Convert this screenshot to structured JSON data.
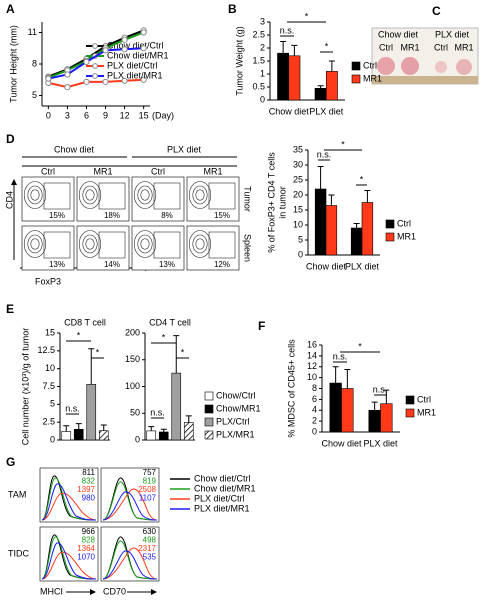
{
  "panel_labels": [
    "A",
    "B",
    "C",
    "D",
    "E",
    "F",
    "G"
  ],
  "chart_data": [
    {
      "type": "line",
      "y_label": "Tumor Height (mm)",
      "x_label": "(Day)",
      "x": [
        0,
        3,
        6,
        9,
        12,
        15
      ],
      "xlim": [
        -1,
        16
      ],
      "xticks": [
        0,
        3,
        6,
        9,
        12,
        15
      ],
      "ylim": [
        4,
        12
      ],
      "yticks": [
        5,
        8,
        11
      ],
      "series": [
        {
          "name": "Chow diet/Ctrl",
          "color": "#000000",
          "values": [
            6.8,
            7.5,
            8.5,
            9.7,
            10.5,
            11.2
          ]
        },
        {
          "name": "Chow diet/MR1",
          "color": "#1a9e1a",
          "values": [
            6.7,
            7.4,
            8.3,
            9.5,
            10.3,
            11.0
          ]
        },
        {
          "name": "PLX diet/Ctrl",
          "color": "#ff3a1a",
          "values": [
            6.2,
            5.8,
            6.3,
            6.3,
            6.4,
            6.5
          ]
        },
        {
          "name": "PLX diet/MR1",
          "color": "#1a1aff",
          "values": [
            6.6,
            7.0,
            8.2,
            9.3,
            9.4,
            9.5
          ]
        }
      ]
    },
    {
      "type": "bar",
      "y_label": "Tumor Weight (g)",
      "categories": [
        "Chow diet",
        "PLX diet"
      ],
      "ylim": [
        0,
        3
      ],
      "yticks": [
        0,
        0.5,
        1,
        1.5,
        2,
        2.5,
        3
      ],
      "annotations": [
        "n.s.",
        "*",
        "*"
      ],
      "series": [
        {
          "name": "Ctrl",
          "color": "#000000",
          "values": [
            1.8,
            0.45
          ],
          "errors": [
            0.45,
            0.1
          ]
        },
        {
          "name": "MR1",
          "color": "#ff3a1a",
          "values": [
            1.7,
            1.1
          ],
          "errors": [
            0.4,
            0.4
          ]
        }
      ]
    },
    {
      "type": "bar",
      "y_label": [
        "% of FoxP3+ CD4 T cells",
        "in tumor"
      ],
      "categories": [
        "Chow diet",
        "PLX diet"
      ],
      "ylim": [
        0,
        35
      ],
      "yticks": [
        0,
        5,
        10,
        15,
        20,
        25,
        30,
        35
      ],
      "annotations": [
        "n.s.",
        "*",
        "*"
      ],
      "series": [
        {
          "name": "Ctrl",
          "color": "#000000",
          "values": [
            22,
            9
          ],
          "errors": [
            7.5,
            1.5
          ]
        },
        {
          "name": "MR1",
          "color": "#ff3a1a",
          "values": [
            16.5,
            17.5
          ],
          "errors": [
            3.5,
            4
          ]
        }
      ]
    },
    {
      "type": "bar",
      "title": "CD8 T cell",
      "y_label": "Cell number (x10³)/g of tumor",
      "ylim": [
        0,
        15
      ],
      "yticks": [
        0,
        2.5,
        5,
        7.5,
        10,
        12.5,
        15
      ],
      "annotations": [
        "n.s.",
        "*",
        "*"
      ],
      "series": [
        {
          "name": "Chow/Ctrl",
          "color": "#ffffff",
          "values": [
            1.2
          ],
          "errors": [
            0.8
          ]
        },
        {
          "name": "Chow/MR1",
          "color": "#000000",
          "values": [
            1.5
          ],
          "errors": [
            0.8
          ]
        },
        {
          "name": "PLX/Ctrl",
          "color": "#a0a0a0",
          "values": [
            7.8
          ],
          "errors": [
            5
          ]
        },
        {
          "name": "PLX/MR1",
          "color": "#ffffff",
          "hatch": true,
          "values": [
            1.3
          ],
          "errors": [
            0.8
          ]
        }
      ]
    },
    {
      "type": "bar",
      "title": "CD4 T cell",
      "ylim": [
        0,
        200
      ],
      "yticks": [
        0,
        50,
        100,
        150,
        200
      ],
      "annotations": [
        "n.s.",
        "*",
        "*"
      ],
      "series": [
        {
          "color": "#ffffff",
          "values": [
            17
          ],
          "errors": [
            8
          ]
        },
        {
          "color": "#000000",
          "values": [
            15
          ],
          "errors": [
            5
          ]
        },
        {
          "color": "#a0a0a0",
          "values": [
            125
          ],
          "errors": [
            70
          ]
        },
        {
          "color": "#ffffff",
          "hatch": true,
          "values": [
            33
          ],
          "errors": [
            12
          ]
        }
      ]
    },
    {
      "type": "bar",
      "y_label": "% MDSC of CD45+ cells",
      "categories": [
        "Chow diet",
        "PLX diet"
      ],
      "ylim": [
        0,
        16
      ],
      "yticks": [
        0,
        2,
        4,
        6,
        8,
        10,
        12,
        14,
        16
      ],
      "annotations": [
        "n.s.",
        "*",
        "n.s."
      ],
      "series": [
        {
          "name": "Ctrl",
          "color": "#000000",
          "values": [
            9,
            4
          ],
          "errors": [
            3,
            1.5
          ]
        },
        {
          "name": "MR1",
          "color": "#ff3a1a",
          "values": [
            8,
            5.2
          ],
          "errors": [
            3.5,
            2.5
          ]
        }
      ]
    }
  ],
  "photo": {
    "groups": [
      "Chow diet",
      "PLX diet"
    ],
    "labels": [
      "Ctrl",
      "MR1",
      "Ctrl",
      "MR1"
    ]
  },
  "flow": {
    "groups": [
      "Chow diet",
      "PLX diet"
    ],
    "columns": [
      "Ctrl",
      "MR1",
      "Ctrl",
      "MR1"
    ],
    "rows": [
      "Tumor",
      "Spleen"
    ],
    "percents": [
      [
        "15%",
        "18%",
        "8%",
        "15%"
      ],
      [
        "13%",
        "14%",
        "13%",
        "12%"
      ]
    ],
    "y_label": "CD4",
    "x_label": "FoxP3"
  },
  "histograms": {
    "rows": [
      "TAM",
      "TIDC"
    ],
    "columns": [
      "MHCI",
      "CD70"
    ],
    "legend": [
      {
        "name": "Chow diet/Ctrl",
        "color": "#000000"
      },
      {
        "name": "Chow diet/MR1",
        "color": "#1a9e1a"
      },
      {
        "name": "PLX diet/Ctrl",
        "color": "#ff3a1a"
      },
      {
        "name": "PLX diet/MR1",
        "color": "#1a1aff"
      }
    ],
    "mfi": [
      [
        [
          "811",
          "832",
          "1397",
          "980"
        ],
        [
          "757",
          "819",
          "2508",
          "1107"
        ]
      ],
      [
        [
          "966",
          "828",
          "1364",
          "1070"
        ],
        [
          "630",
          "498",
          "2317",
          "535"
        ]
      ]
    ]
  }
}
